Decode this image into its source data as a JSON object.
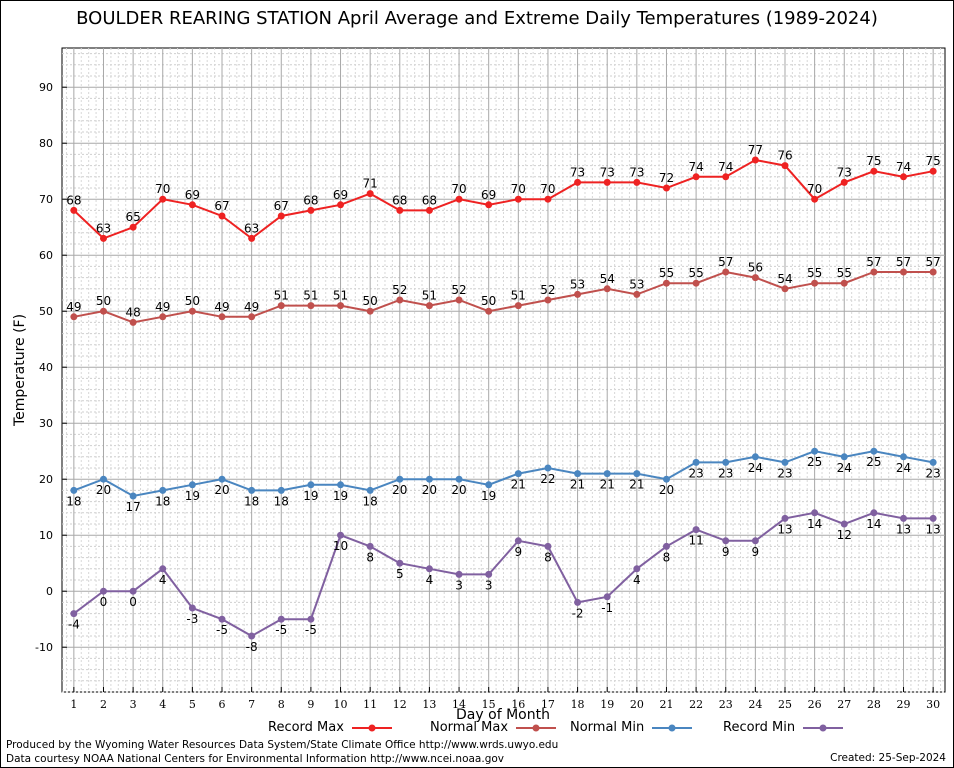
{
  "title": "BOULDER REARING STATION April Average and Extreme Daily Temperatures (1989-2024)",
  "footer": {
    "line1": "Produced by the Wyoming Water Resources Data System/State Climate Office http://www.wrds.uwyo.edu",
    "line2": "Data courtesy NOAA National Centers for Environmental Information http://www.ncei.noaa.gov",
    "created": "Created:  25-Sep-2024"
  },
  "chart_data": {
    "type": "line",
    "title": "BOULDER REARING STATION April Average and Extreme Daily Temperatures (1989-2024)",
    "xlabel": "Day of Month",
    "ylabel": "Temperature (F)",
    "x": [
      1,
      2,
      3,
      4,
      5,
      6,
      7,
      8,
      9,
      10,
      11,
      12,
      13,
      14,
      15,
      16,
      17,
      18,
      19,
      20,
      21,
      22,
      23,
      24,
      25,
      26,
      27,
      28,
      29,
      30
    ],
    "xlim": [
      0.6,
      30.4
    ],
    "ylim": [
      -18,
      97
    ],
    "yticks": [
      -10,
      0,
      10,
      20,
      30,
      40,
      50,
      60,
      70,
      80,
      90
    ],
    "grid": true,
    "legend_position": "bottom",
    "series": [
      {
        "name": "Record Max",
        "color": "#ee2222",
        "values": [
          68,
          63,
          65,
          70,
          69,
          67,
          63,
          67,
          68,
          69,
          71,
          68,
          68,
          70,
          69,
          70,
          70,
          73,
          73,
          73,
          72,
          74,
          74,
          77,
          76,
          70,
          73,
          75,
          74,
          75
        ]
      },
      {
        "name": "Normal Max",
        "color": "#c0504d",
        "values": [
          49,
          50,
          48,
          49,
          50,
          49,
          49,
          51,
          51,
          51,
          50,
          52,
          51,
          52,
          50,
          51,
          52,
          53,
          54,
          53,
          55,
          55,
          57,
          56,
          54,
          55,
          55,
          57,
          57,
          57
        ]
      },
      {
        "name": "Normal Min",
        "color": "#4a86c0",
        "values": [
          18,
          20,
          17,
          18,
          19,
          20,
          18,
          18,
          19,
          19,
          18,
          20,
          20,
          20,
          19,
          21,
          22,
          21,
          21,
          21,
          20,
          23,
          23,
          24,
          23,
          25,
          24,
          25,
          24,
          23
        ]
      },
      {
        "name": "Record Min",
        "color": "#8060a0",
        "values": [
          -4,
          0,
          0,
          4,
          -3,
          -5,
          -8,
          -5,
          -5,
          10,
          8,
          5,
          4,
          3,
          3,
          9,
          8,
          -2,
          -1,
          4,
          8,
          11,
          9,
          9,
          13,
          14,
          12,
          14,
          13,
          13
        ]
      }
    ]
  }
}
